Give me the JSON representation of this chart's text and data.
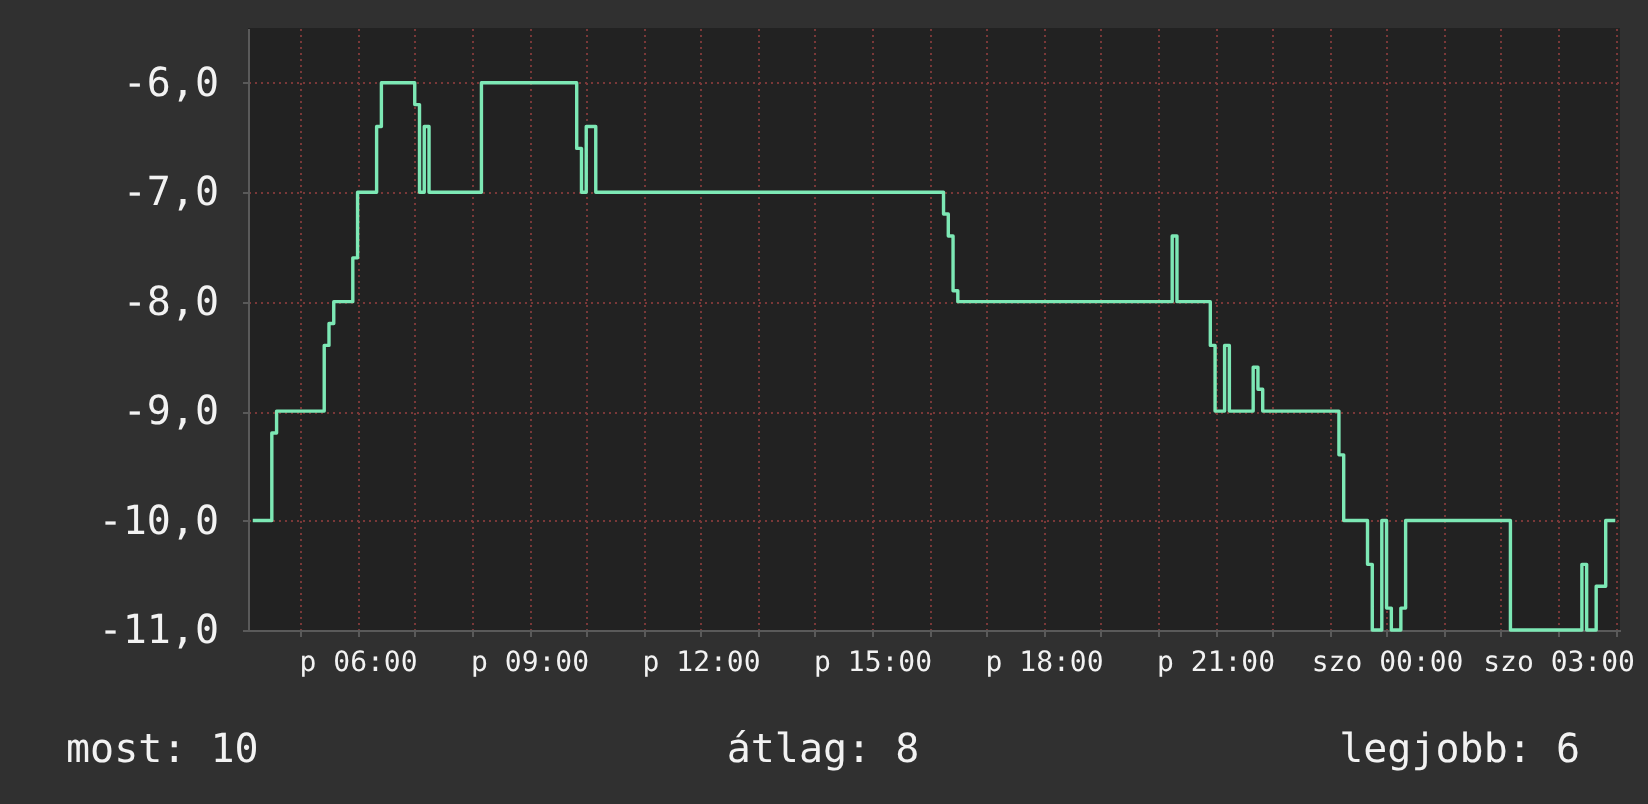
{
  "chart_data": {
    "type": "step",
    "categories": [
      null,
      null,
      null,
      null,
      null,
      null,
      null,
      null,
      null,
      null,
      null,
      null,
      null,
      null,
      null,
      null,
      null,
      null,
      null,
      null,
      null,
      null,
      "p 06:00",
      null,
      null,
      null,
      null,
      null,
      null,
      null,
      null,
      null,
      null,
      null,
      null,
      null,
      null,
      null,
      null,
      null,
      null,
      null,
      null,
      null,
      null,
      null,
      null,
      null,
      null,
      null,
      null,
      null,
      null,
      null,
      null,
      null,
      null,
      null,
      "p 09:00",
      null,
      null,
      null,
      null,
      null,
      null,
      null,
      null,
      null,
      null,
      null,
      null,
      null,
      null,
      null,
      null,
      null,
      null,
      null,
      null,
      null,
      null,
      null,
      null,
      null,
      null,
      null,
      null,
      null,
      null,
      null,
      null,
      null,
      null,
      null,
      "p 12:00",
      null,
      null,
      null,
      null,
      null,
      null,
      null,
      null,
      null,
      null,
      null,
      null,
      null,
      null,
      null,
      null,
      null,
      null,
      null,
      null,
      null,
      null,
      null,
      null,
      null,
      null,
      null,
      null,
      null,
      null,
      null,
      null,
      null,
      null,
      null,
      "p 15:00",
      null,
      null,
      null,
      null,
      null,
      null,
      null,
      null,
      null,
      null,
      null,
      null,
      null,
      null,
      null,
      null,
      null,
      null,
      null,
      null,
      null,
      null,
      null,
      null,
      null,
      null,
      null,
      null,
      null,
      null,
      null,
      null,
      null,
      null,
      null,
      "p 18:00",
      null,
      null,
      null,
      null,
      null,
      null,
      null,
      null,
      null,
      null,
      null,
      null,
      null,
      null,
      null,
      null,
      null,
      null,
      null,
      null,
      null,
      null,
      null,
      null,
      null,
      null,
      null,
      null,
      null,
      null,
      null,
      null,
      null,
      null,
      null,
      "p 21:00",
      null,
      null,
      null,
      null,
      null,
      null,
      null,
      null,
      null,
      null,
      null,
      null,
      null,
      null,
      null,
      null,
      null,
      null,
      null,
      null,
      null,
      null,
      null,
      null,
      null,
      null,
      null,
      null,
      null,
      null,
      null,
      null,
      null,
      null,
      null,
      "szo 00:00",
      null,
      null,
      null,
      null,
      null,
      null,
      null,
      null,
      null,
      null,
      null,
      null,
      null,
      null,
      null,
      null,
      null,
      null,
      null,
      null,
      null,
      null,
      null,
      null,
      null,
      null,
      null,
      null,
      null,
      null,
      null,
      null,
      null,
      null,
      null,
      "szo 03:00",
      null,
      null,
      null,
      null,
      null,
      null,
      null,
      null,
      null,
      null,
      null,
      null
    ],
    "series": [
      {
        "color": "#7de8b5",
        "values": [
          -10,
          -10,
          -10,
          -10,
          -9.2,
          -9,
          -9,
          -9,
          -9,
          -9,
          -9,
          -9,
          -9,
          -9,
          -9,
          -8.4,
          -8.2,
          -8,
          -8,
          -8,
          -8,
          -7.6,
          -7,
          -7,
          -7,
          -7,
          -6.4,
          -6,
          -6,
          -6,
          -6,
          -6,
          -6,
          -6,
          -6.2,
          -7,
          -6.4,
          -7,
          -7,
          -7,
          -7,
          -7,
          -7,
          -7,
          -7,
          -7,
          -7,
          -7,
          -6,
          -6,
          -6,
          -6,
          -6,
          -6,
          -6,
          -6,
          -6,
          -6,
          -6,
          -6,
          -6,
          -6,
          -6,
          -6,
          -6,
          -6,
          -6,
          -6,
          -6.6,
          -7,
          -6.4,
          -6.4,
          -7,
          -7,
          -7,
          -7,
          -7,
          -7,
          -7,
          -7,
          -7,
          -7,
          -7,
          -7,
          -7,
          -7,
          -7,
          -7,
          -7,
          -7,
          -7,
          -7,
          -7,
          -7,
          -7,
          -7,
          -7,
          -7,
          -7,
          -7,
          -7,
          -7,
          -7,
          -7,
          -7,
          -7,
          -7,
          -7,
          -7,
          -7,
          -7,
          -7,
          -7,
          -7,
          -7,
          -7,
          -7,
          -7,
          -7,
          -7,
          -7,
          -7,
          -7,
          -7,
          -7,
          -7,
          -7,
          -7,
          -7,
          -7,
          -7,
          -7,
          -7,
          -7,
          -7,
          -7,
          -7,
          -7,
          -7,
          -7,
          -7,
          -7,
          -7,
          -7,
          -7,
          -7.2,
          -7.4,
          -7.9,
          -8,
          -8,
          -8,
          -8,
          -8,
          -8,
          -8,
          -8,
          -8,
          -8,
          -8,
          -8,
          -8,
          -8,
          -8,
          -8,
          -8,
          -8,
          -8,
          -8,
          -8,
          -8,
          -8,
          -8,
          -8,
          -8,
          -8,
          -8,
          -8,
          -8,
          -8,
          -8,
          -8,
          -8,
          -8,
          -8,
          -8,
          -8,
          -8,
          -8,
          -8,
          -8,
          -8,
          -8,
          -8,
          -7.4,
          -8,
          -8,
          -8,
          -8,
          -8,
          -8,
          -8,
          -8.4,
          -9,
          -9,
          -8.4,
          -9,
          -9,
          -9,
          -9,
          -9,
          -8.6,
          -8.8,
          -9,
          -9,
          -9,
          -9,
          -9,
          -9,
          -9,
          -9,
          -9,
          -9,
          -9,
          -9,
          -9,
          -9,
          -9,
          -9,
          -9.4,
          -10,
          -10,
          -10,
          -10,
          -10,
          -10.4,
          -11,
          -11,
          -10,
          -10.8,
          -11,
          -11,
          -10.8,
          -10,
          -10,
          -10,
          -10,
          -10,
          -10,
          -10,
          -10,
          -10,
          -10,
          -10,
          -10,
          -10,
          -10,
          -10,
          -10,
          -10,
          -10,
          -10,
          -10,
          -10,
          -10,
          -11,
          -11,
          -11,
          -11,
          -11,
          -11,
          -11,
          -11,
          -11,
          -11,
          -11,
          -11,
          -11,
          -11,
          -11,
          -10.4,
          -11,
          -11,
          -10.6,
          -10.6,
          -10,
          -10,
          -10
        ]
      }
    ],
    "ylim": [
      -11,
      -5.5
    ],
    "yticks": [
      {
        "value": -11,
        "label": "-11,0"
      },
      {
        "value": -10,
        "label": "-10,0"
      },
      {
        "value": -9,
        "label": "-9,0"
      },
      {
        "value": -8,
        "label": "-8,0"
      },
      {
        "value": -7,
        "label": "-7,0"
      },
      {
        "value": -6,
        "label": "-6,0"
      }
    ],
    "grid": true,
    "annotations": [
      "most: 10",
      "átlag: 8",
      "legjobb: 6"
    ]
  }
}
